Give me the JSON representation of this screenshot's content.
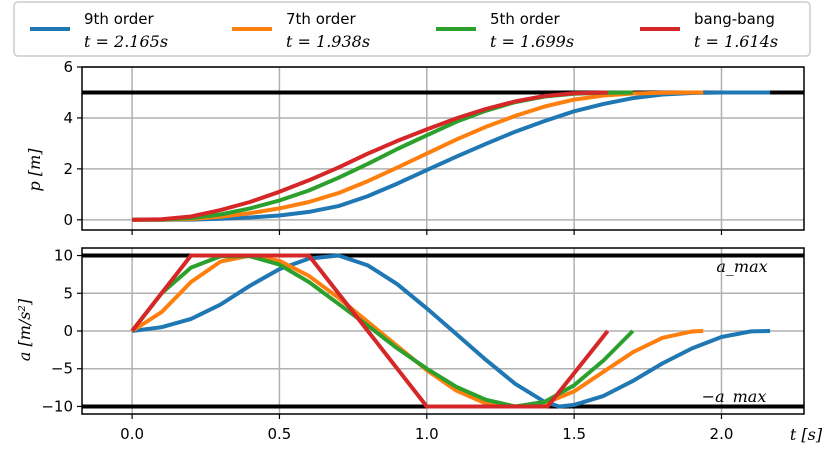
{
  "chart_data": [
    {
      "type": "line",
      "ylabel": "p [m]",
      "ylim": [
        -0.4,
        6
      ],
      "xlim": [
        -0.17,
        2.28
      ],
      "yticks": [
        0,
        2,
        4,
        6
      ],
      "grid": true,
      "hlines": [
        5
      ],
      "series": [
        {
          "name": "9th order",
          "color": "#1f77b4",
          "x": [
            0,
            0.1,
            0.2,
            0.3,
            0.4,
            0.5,
            0.6,
            0.7,
            0.8,
            0.9,
            1.0,
            1.1,
            1.2,
            1.3,
            1.4,
            1.5,
            1.6,
            1.7,
            1.8,
            1.9,
            2.0,
            2.1,
            2.165
          ],
          "y": [
            0,
            0.001,
            0.01,
            0.04,
            0.09,
            0.17,
            0.31,
            0.54,
            0.93,
            1.42,
            1.95,
            2.48,
            2.98,
            3.46,
            3.88,
            4.26,
            4.55,
            4.78,
            4.92,
            4.98,
            5.0,
            5.0,
            5.0
          ]
        },
        {
          "name": "7th order",
          "color": "#ff7f0e",
          "x": [
            0,
            0.1,
            0.2,
            0.3,
            0.4,
            0.5,
            0.6,
            0.7,
            0.8,
            0.9,
            1.0,
            1.1,
            1.2,
            1.3,
            1.4,
            1.5,
            1.6,
            1.7,
            1.8,
            1.9,
            1.938
          ],
          "y": [
            0,
            0.004,
            0.03,
            0.12,
            0.26,
            0.45,
            0.7,
            1.05,
            1.52,
            2.05,
            2.6,
            3.15,
            3.65,
            4.08,
            4.45,
            4.72,
            4.88,
            4.96,
            4.99,
            5.0,
            5.0
          ]
        },
        {
          "name": "5th order",
          "color": "#2ca02c",
          "x": [
            0,
            0.1,
            0.2,
            0.3,
            0.4,
            0.5,
            0.6,
            0.7,
            0.8,
            0.9,
            1.0,
            1.1,
            1.2,
            1.3,
            1.4,
            1.5,
            1.6,
            1.699
          ],
          "y": [
            0,
            0.01,
            0.07,
            0.21,
            0.45,
            0.76,
            1.15,
            1.65,
            2.2,
            2.78,
            3.32,
            3.85,
            4.28,
            4.62,
            4.84,
            4.95,
            4.99,
            5.0
          ]
        },
        {
          "name": "bang-bang",
          "color": "#d62728",
          "x": [
            0,
            0.1,
            0.2,
            0.3,
            0.4,
            0.5,
            0.6,
            0.7,
            0.8,
            0.9,
            1.0,
            1.1,
            1.2,
            1.3,
            1.4,
            1.5,
            1.614
          ],
          "y": [
            0,
            0.02,
            0.13,
            0.38,
            0.7,
            1.1,
            1.55,
            2.05,
            2.6,
            3.1,
            3.55,
            3.98,
            4.35,
            4.65,
            4.86,
            4.97,
            5.0
          ]
        }
      ]
    },
    {
      "type": "line",
      "xlabel": "t [s]",
      "ylabel": "a [m/s²]",
      "ylim": [
        -11,
        11
      ],
      "xlim": [
        -0.17,
        2.28
      ],
      "xticks": [
        0.0,
        0.5,
        1.0,
        1.5,
        2.0
      ],
      "yticks": [
        -10,
        -5,
        0,
        5,
        10
      ],
      "grid": true,
      "hlines": [
        10,
        -10
      ],
      "annotations": [
        "a_max",
        "−a_max"
      ],
      "series": [
        {
          "name": "9th order",
          "color": "#1f77b4",
          "x": [
            0,
            0.1,
            0.2,
            0.3,
            0.4,
            0.5,
            0.6,
            0.7,
            0.8,
            0.9,
            1.0,
            1.1,
            1.2,
            1.3,
            1.4,
            1.45,
            1.5,
            1.6,
            1.7,
            1.8,
            1.9,
            2.0,
            2.1,
            2.165
          ],
          "y": [
            0,
            0.5,
            1.6,
            3.5,
            6,
            8.2,
            9.6,
            10,
            8.7,
            6.2,
            3,
            -0.4,
            -3.8,
            -7,
            -9.4,
            -10,
            -9.8,
            -8.6,
            -6.6,
            -4.3,
            -2.3,
            -0.8,
            -0.05,
            0
          ]
        },
        {
          "name": "7th order",
          "color": "#ff7f0e",
          "x": [
            0,
            0.1,
            0.2,
            0.3,
            0.4,
            0.5,
            0.6,
            0.7,
            0.8,
            0.9,
            1.0,
            1.1,
            1.2,
            1.3,
            1.4,
            1.5,
            1.6,
            1.7,
            1.8,
            1.9,
            1.938
          ],
          "y": [
            0,
            2.5,
            6.5,
            9.2,
            10,
            9.3,
            7.3,
            4.4,
            1.2,
            -2,
            -5.2,
            -7.9,
            -9.6,
            -10,
            -9.6,
            -8,
            -5.4,
            -2.8,
            -0.9,
            -0.05,
            0
          ]
        },
        {
          "name": "5th order",
          "color": "#2ca02c",
          "x": [
            0,
            0.1,
            0.2,
            0.3,
            0.4,
            0.5,
            0.6,
            0.7,
            0.8,
            0.9,
            1.0,
            1.1,
            1.2,
            1.3,
            1.4,
            1.5,
            1.6,
            1.699
          ],
          "y": [
            0,
            5,
            8.4,
            9.9,
            9.9,
            8.8,
            6.5,
            3.6,
            0.7,
            -2.3,
            -5,
            -7.4,
            -9.1,
            -10,
            -9.4,
            -7.2,
            -3.9,
            0
          ]
        },
        {
          "name": "bang-bang",
          "color": "#d62728",
          "x": [
            0,
            0.2,
            0.6,
            1.0,
            1.41,
            1.614
          ],
          "y": [
            0,
            10,
            10,
            -10,
            -10,
            0
          ]
        }
      ]
    }
  ],
  "legend": {
    "placement": "top",
    "items": [
      {
        "label": "9th order",
        "time": "t = 2.165s",
        "color": "#1f77b4"
      },
      {
        "label": "7th order",
        "time": "t = 1.938s",
        "color": "#ff7f0e"
      },
      {
        "label": "5th order",
        "time": "t = 1.699s",
        "color": "#2ca02c"
      },
      {
        "label": "bang-bang",
        "time": "t = 1.614s",
        "color": "#d62728"
      }
    ]
  },
  "ylabel_top": "p [m]",
  "ylabel_bottom": "a [m/s²]",
  "xlabel": "t [s]",
  "amax_label": "a_max",
  "amin_label": "−a_max"
}
